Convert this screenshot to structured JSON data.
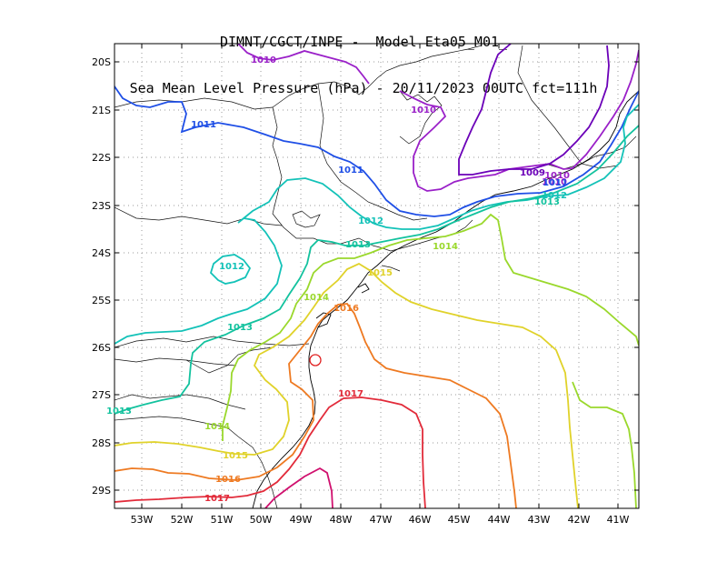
{
  "title": {
    "line1": "DIMNT/CGCT/INPE -  Model Eta05_M01_",
    "line2": "Sea Mean Level Pressure (hPa) - 20/11/2023 00UTC fct=111h"
  },
  "lat_labels": [
    "20S",
    "21S",
    "22S",
    "23S",
    "24S",
    "25S",
    "26S",
    "27S",
    "28S",
    "29S"
  ],
  "lon_labels": [
    "53W",
    "52W",
    "51W",
    "50W",
    "49W",
    "48W",
    "47W",
    "46W",
    "45W",
    "44W",
    "43W",
    "42W",
    "41W"
  ],
  "contour_labels": [
    "1009",
    "1010",
    "1010",
    "1010",
    "1010",
    "1011",
    "1011",
    "1011",
    "1012",
    "1012",
    "1012",
    "1013",
    "1013",
    "1013",
    "1013",
    "1014",
    "1014",
    "1014",
    "1015",
    "1015",
    "1016",
    "1016",
    "1017",
    "1017"
  ],
  "colors": {
    "1009": "#6b00b8",
    "1010": "#9a20c8",
    "1011": "#1f4fe6",
    "1012": "#13c2b8",
    "1013": "#13c29e",
    "1014": "#9ad82c",
    "1015": "#e0d22a",
    "1016": "#ee7a22",
    "1017": "#e22b3a",
    "1018": "#d0106e"
  }
}
